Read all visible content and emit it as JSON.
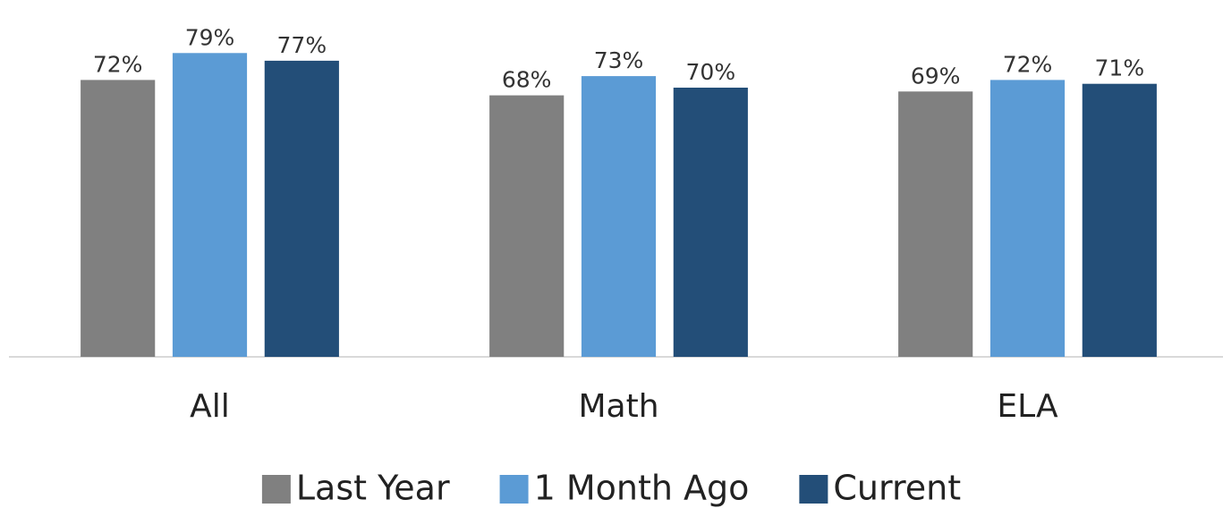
{
  "chart_data": {
    "type": "bar",
    "categories": [
      "All",
      "Math",
      "ELA"
    ],
    "series": [
      {
        "name": "Last Year",
        "color": "#808080",
        "values": [
          72,
          68,
          69
        ],
        "value_labels": [
          "72%",
          "68%",
          "69%"
        ]
      },
      {
        "name": "1 Month Ago",
        "color": "#5b9bd5",
        "values": [
          79,
          73,
          72
        ],
        "value_labels": [
          "79%",
          "73%",
          "72%"
        ]
      },
      {
        "name": "Current",
        "color": "#234e78",
        "values": [
          77,
          70,
          71
        ],
        "value_labels": [
          "77%",
          "70%",
          "71%"
        ]
      }
    ],
    "ylim": [
      0,
      90
    ],
    "legend": "bottom"
  }
}
